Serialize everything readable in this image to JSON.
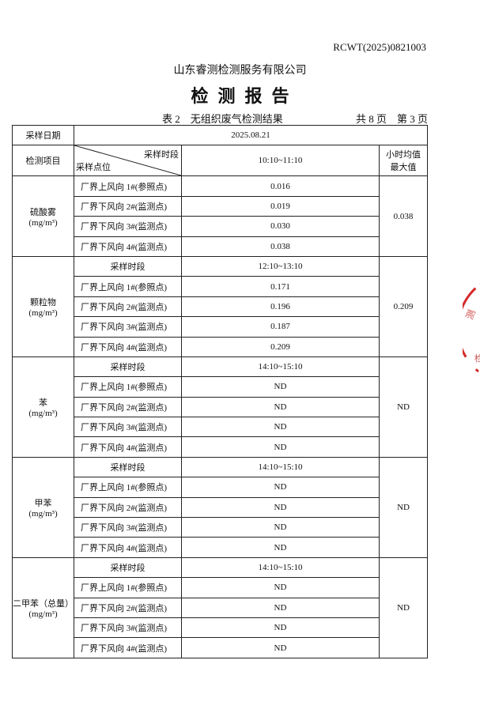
{
  "report_no": "RCWT(2025)0821003",
  "company": "山东睿测检测服务有限公司",
  "title": "检测报告",
  "table_caption": "表 2　无组织废气检测结果",
  "page_info": "共 8 页　第 3 页",
  "table": {
    "date_label": "采样日期",
    "date_value": "2025.08.21",
    "item_label": "检测项目",
    "period_label": "采样时段",
    "point_label": "采样点位",
    "max_label_1": "小时均值",
    "max_label_2": "最大值",
    "first_period": "10:10~11:10",
    "groups": [
      {
        "name": "硫酸雾",
        "unit": "(mg/m³)",
        "period": null,
        "max": "0.038",
        "rows": [
          [
            "厂界上风向 1#(参照点)",
            "0.016"
          ],
          [
            "厂界下风向 2#(监测点)",
            "0.019"
          ],
          [
            "厂界下风向 3#(监测点)",
            "0.030"
          ],
          [
            "厂界下风向 4#(监测点)",
            "0.038"
          ]
        ]
      },
      {
        "name": "颗粒物",
        "unit": "(mg/m³)",
        "period": "12:10~13:10",
        "max": "0.209",
        "rows": [
          [
            "厂界上风向 1#(参照点)",
            "0.171"
          ],
          [
            "厂界下风向 2#(监测点)",
            "0.196"
          ],
          [
            "厂界下风向 3#(监测点)",
            "0.187"
          ],
          [
            "厂界下风向 4#(监测点)",
            "0.209"
          ]
        ]
      },
      {
        "name": "苯",
        "unit": "(mg/m³)",
        "period": "14:10~15:10",
        "max": "ND",
        "rows": [
          [
            "厂界上风向 1#(参照点)",
            "ND"
          ],
          [
            "厂界下风向 2#(监测点)",
            "ND"
          ],
          [
            "厂界下风向 3#(监测点)",
            "ND"
          ],
          [
            "厂界下风向 4#(监测点)",
            "ND"
          ]
        ]
      },
      {
        "name": "甲苯",
        "unit": "(mg/m³)",
        "period": "14:10~15:10",
        "max": "ND",
        "rows": [
          [
            "厂界上风向 1#(参照点)",
            "ND"
          ],
          [
            "厂界下风向 2#(监测点)",
            "ND"
          ],
          [
            "厂界下风向 3#(监测点)",
            "ND"
          ],
          [
            "厂界下风向 4#(监测点)",
            "ND"
          ]
        ]
      },
      {
        "name": "二甲苯（总量）",
        "unit": "(mg/m³)",
        "period": "14:10~15:10",
        "max": "ND",
        "rows": [
          [
            "厂界上风向 1#(参照点)",
            "ND"
          ],
          [
            "厂界下风向 2#(监测点)",
            "ND"
          ],
          [
            "厂界下风向 3#(监测点)",
            "ND"
          ],
          [
            "厂界下风向 4#(监测点)",
            "ND"
          ]
        ]
      }
    ]
  },
  "seal_color": "#d42a2a"
}
